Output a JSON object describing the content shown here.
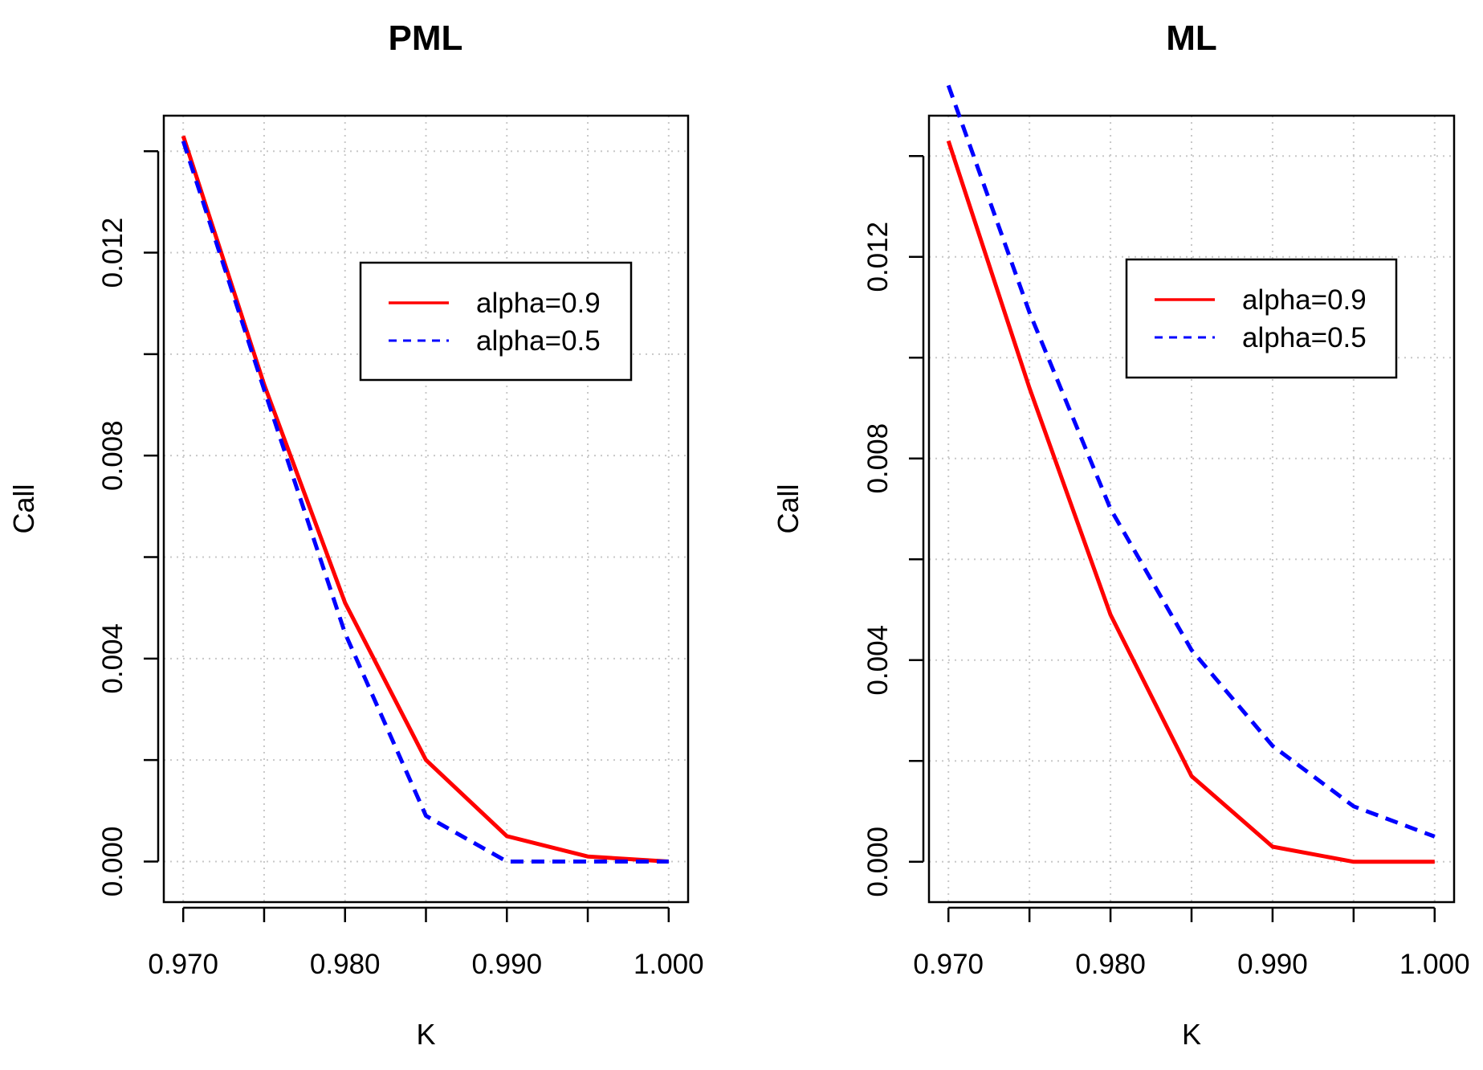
{
  "chart_data": [
    {
      "type": "line",
      "title": "PML",
      "xlabel": "K",
      "ylabel": "Call",
      "xlim": [
        0.9688,
        1.0012
      ],
      "ylim": [
        -0.0008,
        0.0147
      ],
      "xticks": [
        0.97,
        0.975,
        0.98,
        0.985,
        0.99,
        0.995,
        1.0
      ],
      "xtick_labels": [
        "0.970",
        "",
        "0.980",
        "",
        "0.990",
        "",
        "1.000"
      ],
      "yticks": [
        0.0,
        0.002,
        0.004,
        0.006,
        0.008,
        0.01,
        0.012,
        0.014
      ],
      "ytick_labels": [
        "0.000",
        "",
        "0.004",
        "",
        "0.008",
        "",
        "0.012",
        ""
      ],
      "grid": true,
      "legend_position": "top-right",
      "x": [
        0.97,
        0.975,
        0.98,
        0.985,
        0.99,
        0.995,
        1.0
      ],
      "series": [
        {
          "name": "alpha=0.9",
          "color": "#ff0000",
          "style": "solid",
          "values": [
            0.0143,
            0.0094,
            0.0051,
            0.002,
            0.0005,
            0.0001,
            0.0
          ]
        },
        {
          "name": "alpha=0.5",
          "color": "#0000ff",
          "style": "dashed",
          "values": [
            0.0142,
            0.0093,
            0.0045,
            0.0009,
            0.0,
            0.0,
            0.0
          ]
        }
      ]
    },
    {
      "type": "line",
      "title": "ML",
      "xlabel": "K",
      "ylabel": "Call",
      "xlim": [
        0.9688,
        1.0012
      ],
      "ylim": [
        -0.0008,
        0.0148
      ],
      "xticks": [
        0.97,
        0.975,
        0.98,
        0.985,
        0.99,
        0.995,
        1.0
      ],
      "xtick_labels": [
        "0.970",
        "",
        "0.980",
        "",
        "0.990",
        "",
        "1.000"
      ],
      "yticks": [
        0.0,
        0.002,
        0.004,
        0.006,
        0.008,
        0.01,
        0.012,
        0.014
      ],
      "ytick_labels": [
        "0.000",
        "",
        "0.004",
        "",
        "0.008",
        "",
        "0.012",
        ""
      ],
      "grid": true,
      "legend_position": "top-right",
      "x": [
        0.97,
        0.975,
        0.98,
        0.985,
        0.99,
        0.995,
        1.0
      ],
      "series": [
        {
          "name": "alpha=0.9",
          "color": "#ff0000",
          "style": "solid",
          "values": [
            0.0143,
            0.0094,
            0.0049,
            0.0017,
            0.0003,
            0.0,
            0.0
          ]
        },
        {
          "name": "alpha=0.5",
          "color": "#0000ff",
          "style": "dashed",
          "values": [
            0.0154,
            0.0109,
            0.007,
            0.0042,
            0.0023,
            0.0011,
            0.0005
          ]
        }
      ]
    }
  ]
}
